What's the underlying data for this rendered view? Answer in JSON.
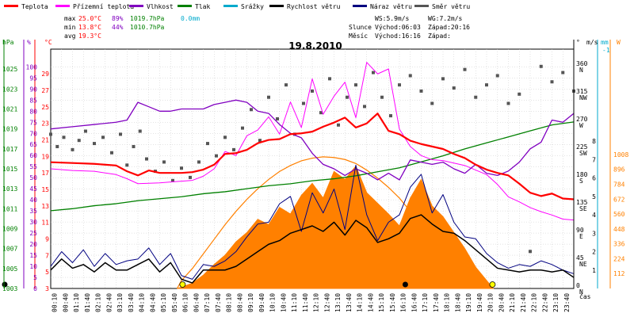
{
  "chart_data": {
    "type": "line",
    "title": "19.8.2010",
    "colors": {
      "teplota": "#ff0000",
      "prizemni": "#ff00ff",
      "vlhkost": "#8000c0",
      "tlak": "#008000",
      "srazky": "#00aacc",
      "rychlost": "#000000",
      "naraz": "#000080",
      "smer": "#555555",
      "solar": "#ff8000",
      "text_max_temp": "#ff0000",
      "text_max_hum": "#8000c0",
      "text_max_press": "#008000",
      "text_max_rain": "#00aacc"
    },
    "legend": [
      {
        "key": "teplota",
        "label": "Teplota"
      },
      {
        "key": "prizemni",
        "label": "Přízemní teplota"
      },
      {
        "key": "vlhkost",
        "label": "Vlhkost"
      },
      {
        "key": "tlak",
        "label": "Tlak"
      },
      {
        "key": "srazky",
        "label": "Srážky"
      },
      {
        "key": "rychlost",
        "label": "Rychlost větru"
      },
      {
        "key": "naraz",
        "label": "Náraz větru"
      },
      {
        "key": "smer",
        "label": "Směr větru"
      }
    ],
    "stats": {
      "max": {
        "label": "max",
        "temp": "25.0°C",
        "hum": "89%",
        "press": "1019.7hPa",
        "rain": "0.0mm"
      },
      "min": {
        "label": "min",
        "temp": "13.8°C",
        "hum": "44%",
        "press": "1010.7hPa"
      },
      "avg": {
        "label": "avg",
        "temp": "19.3°C"
      }
    },
    "wind_info": {
      "ws": "WS:5.9m/s",
      "wg": "WG:7.2m/s"
    },
    "sun_info": {
      "label": "Slunce",
      "rise": "Východ:06:03",
      "set": "Západ:20:16"
    },
    "moon_info": {
      "label": "Měsíc",
      "rise": "Východ:16:16",
      "set": "Západ:"
    },
    "axes": {
      "hpa": {
        "label": "hPa",
        "ticks": [
          1003,
          1005,
          1007,
          1009,
          1011,
          1013,
          1015,
          1017,
          1019,
          1021,
          1023,
          1025
        ],
        "range": [
          1003,
          1027
        ]
      },
      "pct": {
        "label": "%",
        "ticks": [
          0,
          5,
          10,
          15,
          20,
          25,
          30,
          35,
          40,
          45,
          50,
          55,
          60,
          65,
          70,
          75,
          80,
          85,
          90,
          95,
          100
        ],
        "range": [
          0,
          108
        ]
      },
      "temp": {
        "label": "°C",
        "ticks": [
          3,
          5,
          7,
          9,
          11,
          13,
          15,
          17,
          19,
          21,
          23,
          25,
          27,
          29
        ],
        "range": [
          3,
          32
        ]
      },
      "dir": {
        "label": "°",
        "ticks": [
          {
            "v": 0,
            "t": "0",
            "n": "N"
          },
          {
            "v": 45,
            "t": "45",
            "n": "NE"
          },
          {
            "v": 90,
            "t": "90",
            "n": "E"
          },
          {
            "v": 135,
            "t": "135",
            "n": "SE"
          },
          {
            "v": 180,
            "t": "180",
            "n": "S"
          },
          {
            "v": 225,
            "t": "225",
            "n": "SW"
          },
          {
            "v": 270,
            "t": "270",
            "n": "W"
          },
          {
            "v": 315,
            "t": "315",
            "n": "NW"
          },
          {
            "v": 360,
            "t": "360",
            "n": "N"
          }
        ],
        "range": [
          0,
          388
        ]
      },
      "ms": {
        "label": "m/s",
        "ticks": [
          1,
          2,
          3,
          4,
          5,
          6,
          7,
          8
        ],
        "range": [
          0,
          13
        ]
      },
      "mm": {
        "label": "mm",
        "ticks": [
          "-1"
        ]
      },
      "w": {
        "label": "W",
        "ticks": [
          112,
          224,
          336,
          448,
          560,
          672,
          784,
          896,
          1008
        ],
        "range": [
          0,
          1800
        ]
      },
      "time": {
        "label": "čas",
        "ticks": [
          "00:10",
          "00:40",
          "01:10",
          "01:40",
          "02:10",
          "02:40",
          "03:10",
          "03:40",
          "04:10",
          "04:40",
          "05:10",
          "05:40",
          "06:10",
          "06:40",
          "07:10",
          "07:40",
          "08:10",
          "08:40",
          "09:10",
          "09:40",
          "10:10",
          "10:40",
          "11:10",
          "11:40",
          "12:10",
          "12:40",
          "13:10",
          "13:40",
          "14:10",
          "14:40",
          "15:10",
          "15:40",
          "16:10",
          "16:40",
          "17:10",
          "17:40",
          "18:10",
          "18:40",
          "19:10",
          "19:40",
          "20:10",
          "20:40",
          "21:10",
          "21:40",
          "22:10",
          "22:40",
          "23:10",
          "23:40"
        ]
      }
    },
    "series": {
      "teplota_h": [
        0,
        1,
        2,
        3,
        3.5,
        4,
        4.5,
        5,
        5.5,
        6,
        6.5,
        7,
        7.5,
        8,
        8.5,
        9,
        9.5,
        10,
        10.5,
        11,
        11.5,
        12,
        12.5,
        13,
        13.5,
        14,
        14.5,
        15,
        15.5,
        16,
        16.5,
        17,
        17.5,
        18,
        18.5,
        19,
        19.5,
        20,
        20.5,
        21,
        21.5,
        22,
        22.5,
        23,
        23.5,
        24
      ],
      "teplota": [
        18.3,
        18.2,
        18.1,
        17.9,
        17.2,
        16.7,
        17.3,
        17.0,
        17.0,
        17.0,
        17.1,
        17.4,
        18.0,
        19.3,
        19.4,
        19.8,
        20.6,
        21.0,
        21.1,
        21.7,
        21.8,
        22.0,
        22.6,
        23.1,
        23.7,
        22.5,
        23.0,
        24.2,
        22.1,
        21.7,
        20.9,
        20.5,
        20.2,
        19.9,
        19.3,
        18.8,
        18.0,
        17.4,
        17.0,
        16.7,
        15.7,
        14.6,
        14.2,
        14.5,
        13.9,
        13.8
      ],
      "prizemni_h": [
        0,
        1,
        2,
        3,
        3.5,
        4,
        5,
        5.5,
        6,
        6.5,
        7,
        7.5,
        8,
        8.5,
        9,
        9.5,
        10,
        10.5,
        11,
        11.5,
        12,
        12.5,
        13,
        13.5,
        14,
        14.5,
        15,
        15.5,
        16,
        16.5,
        17,
        17.5,
        18,
        19,
        20,
        20.5,
        21,
        21.5,
        22,
        22.5,
        23,
        23.5,
        24
      ],
      "prizemni": [
        17.5,
        17.3,
        17.2,
        16.8,
        16.3,
        15.7,
        15.8,
        15.9,
        16.0,
        16.1,
        16.6,
        17.5,
        19.6,
        19.1,
        21.5,
        22.2,
        23.8,
        21.7,
        25.6,
        22.5,
        28.4,
        24.1,
        26.3,
        28.0,
        23.7,
        30.4,
        29.0,
        29.6,
        22.3,
        20.2,
        19.1,
        18.6,
        18.5,
        17.9,
        16.8,
        15.6,
        14.1,
        13.5,
        12.8,
        12.3,
        11.9,
        11.4,
        11.3
      ],
      "vlhkost_h": [
        0,
        1,
        2,
        3,
        3.5,
        4,
        4.5,
        5,
        5.5,
        6,
        6.5,
        7,
        7.5,
        8,
        8.5,
        9,
        9.5,
        10,
        10.5,
        11,
        11.5,
        12,
        12.5,
        13,
        13.5,
        14,
        14.5,
        15,
        15.5,
        16,
        16.5,
        17,
        17.5,
        18,
        18.5,
        19,
        19.5,
        20,
        20.5,
        21,
        21.5,
        22,
        22.5,
        23,
        23.5,
        24
      ],
      "vlhkost": [
        72,
        73,
        74,
        75,
        76,
        84,
        82,
        80,
        80,
        81,
        81,
        81,
        83,
        84,
        85,
        84,
        80,
        79,
        74,
        70,
        68,
        61,
        56,
        54,
        51,
        54,
        52,
        49,
        52,
        49,
        58,
        57,
        56,
        57,
        54,
        52,
        56,
        52,
        51,
        53,
        57,
        63,
        66,
        76,
        75,
        79
      ],
      "tlak_h": [
        0,
        1,
        2,
        3,
        4,
        5,
        6,
        7,
        8,
        9,
        10,
        11,
        12,
        13,
        14,
        15,
        16,
        17,
        18,
        19,
        20,
        21,
        22,
        23,
        24
      ],
      "tlak": [
        1010.8,
        1011.0,
        1011.3,
        1011.5,
        1011.8,
        1012.0,
        1012.2,
        1012.5,
        1012.7,
        1013.0,
        1013.3,
        1013.5,
        1013.8,
        1014.0,
        1014.3,
        1014.7,
        1015.1,
        1015.7,
        1016.3,
        1017.0,
        1017.6,
        1018.2,
        1018.8,
        1019.4,
        1019.7
      ],
      "wind_h": [
        0,
        0.5,
        1,
        1.5,
        2,
        2.5,
        3,
        3.5,
        4,
        4.5,
        5,
        5.5,
        6,
        6.5,
        7,
        7.5,
        8,
        8.5,
        9,
        9.5,
        10,
        10.5,
        11,
        11.5,
        12,
        12.5,
        13,
        13.5,
        14,
        14.5,
        15,
        15.5,
        16,
        16.5,
        17,
        17.5,
        18,
        18.5,
        19,
        19.5,
        20,
        20.5,
        21,
        21.5,
        22,
        22.5,
        23,
        23.5,
        24
      ],
      "rychlost": [
        1.0,
        1.6,
        1.1,
        1.3,
        0.9,
        1.4,
        1.0,
        1.0,
        1.3,
        1.6,
        0.9,
        1.4,
        0.5,
        0.3,
        1.0,
        1.0,
        1.0,
        1.2,
        1.6,
        2.0,
        2.4,
        2.6,
        3.0,
        3.2,
        3.4,
        3.1,
        3.6,
        2.9,
        3.7,
        3.3,
        2.5,
        2.7,
        3.0,
        3.8,
        4.0,
        3.5,
        3.1,
        3.0,
        2.6,
        2.1,
        1.6,
        1.1,
        1.0,
        0.9,
        1.0,
        1.0,
        0.9,
        1.0,
        0.6
      ],
      "naraz": [
        1.2,
        2.0,
        1.4,
        2.1,
        1.2,
        1.9,
        1.3,
        1.5,
        1.6,
        2.2,
        1.3,
        1.9,
        0.7,
        0.5,
        1.3,
        1.2,
        1.5,
        2.0,
        2.8,
        3.5,
        3.6,
        4.6,
        5.0,
        3.1,
        5.2,
        4.1,
        5.4,
        3.2,
        6.7,
        4.0,
        2.6,
        3.6,
        4.0,
        5.5,
        6.2,
        4.1,
        5.1,
        3.6,
        2.8,
        2.7,
        1.9,
        1.4,
        1.1,
        1.3,
        1.2,
        1.5,
        1.3,
        1.0,
        0.8
      ],
      "smer_h": [
        0,
        0.3,
        0.6,
        1,
        1.3,
        1.6,
        2,
        2.4,
        2.8,
        3.2,
        3.5,
        3.8,
        4.1,
        4.4,
        4.8,
        5.2,
        5.6,
        6,
        6.4,
        6.8,
        7.2,
        7.6,
        8,
        8.4,
        8.8,
        9.2,
        9.6,
        10,
        10.4,
        10.8,
        11.2,
        11.6,
        12,
        12.4,
        12.8,
        13.2,
        13.6,
        14,
        14.4,
        14.8,
        15.2,
        15.6,
        16,
        16.5,
        17,
        17.5,
        18,
        18.5,
        19,
        19.5,
        20,
        20.5,
        21,
        21.5,
        22,
        22.5,
        23,
        23.5,
        24
      ],
      "smer": [
        250,
        230,
        245,
        225,
        240,
        255,
        235,
        245,
        220,
        250,
        200,
        230,
        255,
        210,
        190,
        205,
        175,
        195,
        180,
        205,
        235,
        215,
        245,
        225,
        260,
        290,
        240,
        310,
        275,
        330,
        250,
        300,
        320,
        285,
        340,
        265,
        310,
        330,
        295,
        350,
        310,
        280,
        330,
        345,
        320,
        300,
        340,
        325,
        355,
        310,
        330,
        345,
        300,
        315,
        60,
        360,
        335,
        350,
        320
      ],
      "solar_h": [
        5.8,
        6.0,
        6.5,
        7.0,
        7.5,
        8.0,
        8.5,
        9.0,
        9.5,
        10.0,
        10.5,
        11.0,
        11.5,
        12.0,
        12.5,
        13.0,
        13.5,
        14.0,
        14.5,
        15.0,
        15.5,
        16.0,
        16.5,
        17.0,
        17.5,
        18.0,
        18.5,
        19.0,
        19.5,
        20.0,
        20.3
      ],
      "solar": [
        0,
        10,
        40,
        100,
        180,
        250,
        350,
        420,
        520,
        480,
        610,
        560,
        700,
        790,
        680,
        880,
        820,
        920,
        720,
        640,
        560,
        470,
        680,
        820,
        620,
        540,
        420,
        300,
        160,
        60,
        0
      ],
      "solar_theory": [
        0,
        60,
        150,
        260,
        370,
        480,
        580,
        670,
        750,
        820,
        880,
        925,
        960,
        980,
        990,
        985,
        970,
        940,
        890,
        830,
        760,
        680,
        580,
        470,
        360,
        250,
        150,
        70,
        20,
        5,
        0
      ]
    },
    "markers": {
      "sunrise_h": 6.05,
      "sunset_h": 20.27,
      "moonrise_h": 16.27
    }
  }
}
